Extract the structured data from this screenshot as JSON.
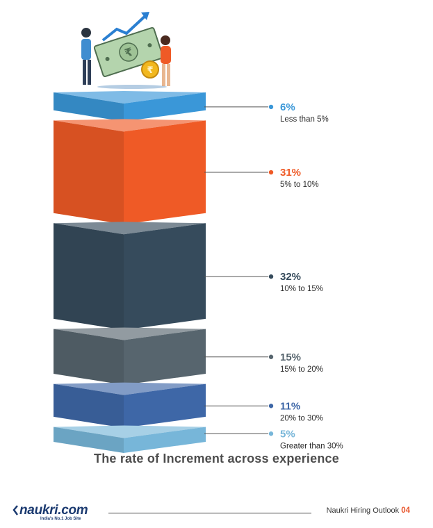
{
  "chart_data": {
    "type": "bar",
    "categories": [
      "Less than 5%",
      "5% to 10%",
      "10% to 15%",
      "15% to 20%",
      "20% to 30%",
      "Greater than 30%"
    ],
    "values": [
      6,
      31,
      32,
      15,
      11,
      5
    ],
    "value_labels": [
      "6%",
      "31%",
      "32%",
      "15%",
      "11%",
      "5%"
    ],
    "colors": [
      "#3a97d8",
      "#ef5a26",
      "#364b5c",
      "#57656e",
      "#3e67a7",
      "#77b6d9"
    ],
    "caption": "The rate of Increment across experience"
  },
  "footer": {
    "logo_text": "naukri.com",
    "logo_tagline": "India's No.1 Job Site",
    "publication": "Naukri Hiring Outlook",
    "page": "04"
  },
  "illustration": {
    "icons": [
      "people-holding-banknote-icon",
      "rupee-coin-icon",
      "growth-arrow-icon"
    ]
  }
}
